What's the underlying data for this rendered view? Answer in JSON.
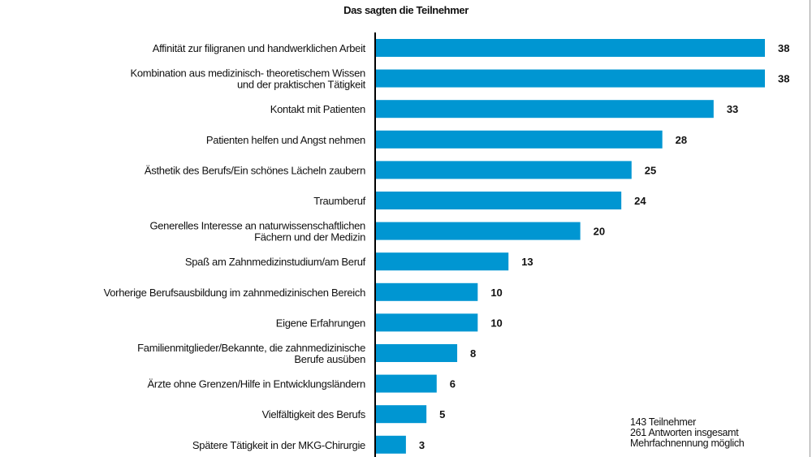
{
  "chart_data": {
    "type": "bar",
    "orientation": "horizontal",
    "subtitle": "Das sagten die Teilnehmer",
    "categories": [
      [
        "Affinität zur filigranen und handwerklichen Arbeit"
      ],
      [
        "Kombination aus medizinisch- theoretischem Wissen",
        "und der praktischen Tätigkeit"
      ],
      [
        "Kontakt mit Patienten"
      ],
      [
        "Patienten helfen und Angst nehmen"
      ],
      [
        "Ästhetik des Berufs/Ein schönes Lächeln zaubern"
      ],
      [
        "Traumberuf"
      ],
      [
        "Generelles Interesse an naturwissenschaftlichen",
        "Fächern und der Medizin"
      ],
      [
        "Spaß am Zahnmedizinstudium/am Beruf"
      ],
      [
        "Vorherige Berufsausbildung im zahnmedizinischen Bereich"
      ],
      [
        "Eigene Erfahrungen"
      ],
      [
        "Familienmitglieder/Bekannte, die zahnmedizinische",
        "Berufe ausüben"
      ],
      [
        "Ärzte ohne Grenzen/Hilfe in Entwicklungsländern"
      ],
      [
        "Vielfältigkeit des Berufs"
      ],
      [
        "Spätere Tätigkeit in der MKG-Chirurgie"
      ]
    ],
    "values": [
      38,
      38,
      33,
      28,
      25,
      24,
      20,
      13,
      10,
      10,
      8,
      6,
      5,
      3
    ],
    "data_labels": true,
    "xlim": [
      0,
      38
    ],
    "grid": false,
    "bar_color": "#0096d2",
    "notes": [
      "143 Teilnehmer",
      "261 Antworten insgesamt",
      "Mehrfachnennung möglich"
    ]
  }
}
